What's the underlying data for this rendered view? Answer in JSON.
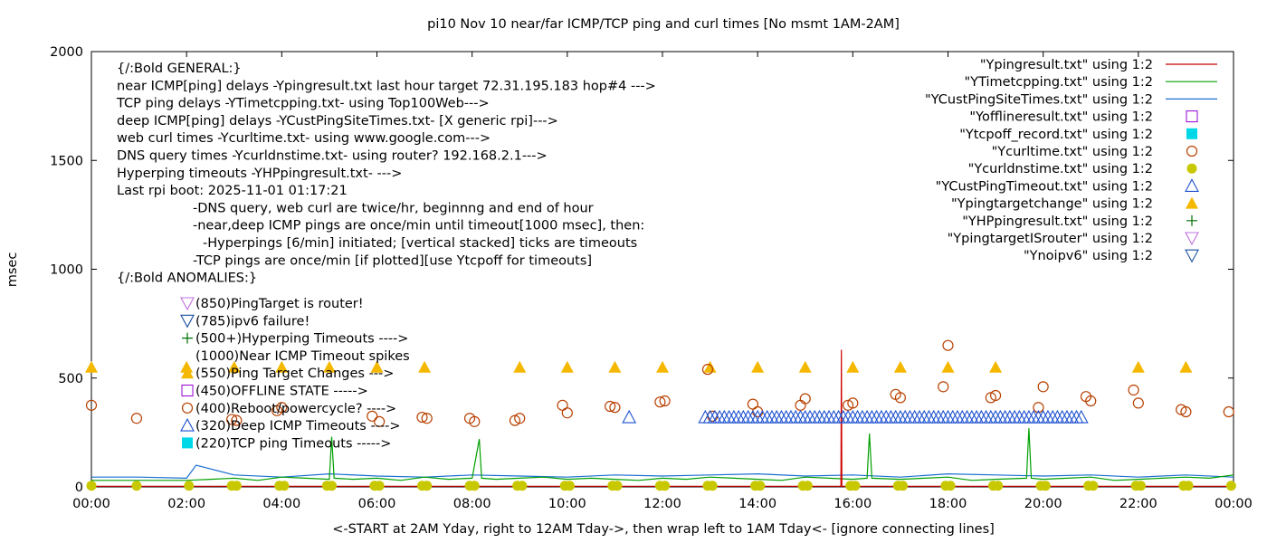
{
  "chart_data": {
    "type": "scatter",
    "title": "pi10 Nov 10  near/far ICMP/TCP ping and curl times [No msmt 1AM-2AM]",
    "xlabel": "<-START at 2AM Yday, right to 12AM Tday->, then wrap left to 1AM Tday<- [ignore connecting lines]",
    "ylabel": "msec",
    "xlim": [
      0,
      24
    ],
    "ylim": [
      0,
      2000
    ],
    "grid": false,
    "legend_position": "top-right",
    "x_tick_labels": [
      "00:00",
      "02:00",
      "04:00",
      "06:00",
      "08:00",
      "10:00",
      "12:00",
      "14:00",
      "16:00",
      "18:00",
      "20:00",
      "22:00",
      "00:00"
    ],
    "y_tick_labels": [
      "0",
      "500",
      "1000",
      "1500",
      "2000"
    ],
    "notes": [
      "{/:Bold GENERAL:}",
      "near ICMP[ping] delays -Ypingresult.txt last hour target 72.31.195.183 hop#4 --->",
      "TCP ping delays -YTimetcpping.txt- using Top100Web--->",
      "deep ICMP[ping] delays -YCustPingSiteTimes.txt- [X generic rpi]--->",
      "web curl times -Ycurltime.txt- using www.google.com--->",
      "DNS query times -Ycurldnstime.txt- using router? 192.168.2.1--->",
      "Hyperping timeouts -YHPpingresult.txt- --->",
      "Last rpi boot: 2025-11-01 01:17:21",
      "-DNS query, web curl are twice/hr, beginnng and end of hour",
      "-near,deep ICMP pings are once/min until timeout[1000 msec], then:",
      "-Hyperpings [6/min] initiated; [vertical stacked] ticks are timeouts",
      "-TCP pings are once/min [if plotted][use Ytcpoff for timeouts]",
      "{/:Bold ANOMALIES:}"
    ],
    "anomalies": [
      {
        "text": "(850)PingTarget is router!",
        "marker": "tri-down-violet"
      },
      {
        "text": "(785)ipv6 failure!",
        "marker": "tri-down-blue"
      },
      {
        "text": "(500+)Hyperping Timeouts ---->",
        "marker": "plus-green"
      },
      {
        "text": "(1000)Near ICMP Timeout spikes",
        "marker": "none"
      },
      {
        "text": "(550)Ping Target Changes --->",
        "marker": "tri-up-orange"
      },
      {
        "text": "(450)OFFLINE STATE ----->",
        "marker": "square-purple"
      },
      {
        "text": "(400)Reboot/powercycle? ---->",
        "marker": "circle-brown"
      },
      {
        "text": "(320)Deep ICMP Timeouts ---->",
        "marker": "tri-up-blue"
      },
      {
        "text": "(220)TCP ping Timeouts ----->",
        "marker": "square-cyan"
      }
    ],
    "legend": [
      {
        "name": "\"Ypingresult.txt\" using 1:2",
        "marker": "line",
        "color": "#cc0000"
      },
      {
        "name": "\"YTimetcpping.txt\" using 1:2",
        "marker": "line",
        "color": "#00a000"
      },
      {
        "name": "\"YCustPingSiteTimes.txt\" using 1:2",
        "marker": "line",
        "color": "#1a6fd0"
      },
      {
        "name": "\"Yofflineresult.txt\" using 1:2",
        "marker": "square",
        "color": "#9400d3"
      },
      {
        "name": "\"Ytcpoff_record.txt\" using 1:2",
        "marker": "fsquare",
        "color": "#00d8e8"
      },
      {
        "name": "\"Ycurltime.txt\" using 1:2",
        "marker": "circle",
        "color": "#b84000"
      },
      {
        "name": "\"Ycurldnstime.txt\" using 1:2",
        "marker": "fcircle",
        "color": "#c8c800"
      },
      {
        "name": "\"YCustPingTimeout.txt\" using 1:2",
        "marker": "triup",
        "color": "#1a4fd0"
      },
      {
        "name": "\"Ypingtargetchange\" using 1:2",
        "marker": "ftriup",
        "color": "#f5b800"
      },
      {
        "name": "\"YHPpingresult.txt\" using 1:2",
        "marker": "plus",
        "color": "#007000"
      },
      {
        "name": "\"YpingtargetISrouter\" using 1:2",
        "marker": "tridown",
        "color": "#c070e0"
      },
      {
        "name": "\"Ynoipv6\" using 1:2",
        "marker": "tridown",
        "color": "#1a4fa0"
      }
    ],
    "series": [
      {
        "name": "\"Ypingtargetchange\" using 1:2",
        "x": [
          0,
          2,
          3,
          4,
          5,
          6,
          7,
          9,
          10,
          11,
          12,
          13,
          14,
          15,
          16,
          17,
          18,
          19,
          22,
          23
        ],
        "y": [
          550,
          550,
          550,
          550,
          550,
          550,
          550,
          550,
          550,
          550,
          550,
          550,
          550,
          550,
          550,
          550,
          550,
          550,
          550,
          550
        ]
      },
      {
        "name": "\"Ycurltime.txt\" using 1:2",
        "x": [
          0,
          0.95,
          2.95,
          3.05,
          3.9,
          4,
          5.9,
          6.05,
          6.95,
          7.05,
          7.95,
          8.05,
          8.9,
          9,
          9.9,
          10,
          10.9,
          11,
          11.95,
          12.05,
          12.95,
          13.05,
          13.9,
          14,
          14.9,
          15,
          15.9,
          16,
          16.9,
          17,
          17.9,
          18,
          18.9,
          19,
          19.9,
          20,
          20.9,
          21,
          21.9,
          22,
          22.9,
          23,
          23.9
        ],
        "y": [
          375,
          315,
          310,
          305,
          350,
          365,
          325,
          300,
          320,
          315,
          315,
          300,
          305,
          315,
          375,
          340,
          370,
          365,
          390,
          395,
          540,
          325,
          380,
          345,
          375,
          405,
          375,
          385,
          425,
          410,
          460,
          650,
          410,
          420,
          365,
          460,
          415,
          395,
          445,
          385,
          355,
          345,
          345
        ]
      },
      {
        "name": "\"YCustPingTimeout.txt\" using 1:2",
        "x": [
          11.3,
          12.9,
          13,
          13.1,
          13.2,
          13.3,
          13.4,
          13.5,
          13.6,
          13.7,
          13.8,
          13.9,
          14.0,
          14.1,
          14.2,
          14.3,
          14.4,
          14.5,
          14.6,
          14.7,
          14.8,
          14.9,
          15.0,
          15.1,
          15.2,
          15.3,
          15.4,
          15.5,
          15.6,
          15.7,
          15.8,
          15.9,
          16.0,
          16.1,
          16.2,
          16.3,
          16.4,
          16.5,
          16.6,
          16.7,
          16.8,
          16.9,
          17.0,
          17.1,
          17.2,
          17.3,
          17.4,
          17.5,
          17.6,
          17.7,
          17.8,
          17.9,
          18.0,
          18.1,
          18.2,
          18.3,
          18.4,
          18.5,
          18.6,
          18.7,
          18.8,
          18.9,
          19.0,
          19.1,
          19.2,
          19.3,
          19.4,
          19.5,
          19.6,
          19.7,
          19.8,
          19.9,
          20.0,
          20.1,
          20.2,
          20.3,
          20.4,
          20.5,
          20.6,
          20.7,
          20.8
        ],
        "y": [
          320,
          320,
          320,
          320,
          320,
          320,
          320,
          320,
          320,
          320,
          320,
          320,
          320,
          320,
          320,
          320,
          320,
          320,
          320,
          320,
          320,
          320,
          320,
          320,
          320,
          320,
          320,
          320,
          320,
          320,
          320,
          320,
          320,
          320,
          320,
          320,
          320,
          320,
          320,
          320,
          320,
          320,
          320,
          320,
          320,
          320,
          320,
          320,
          320,
          320,
          320,
          320,
          320,
          320,
          320,
          320,
          320,
          320,
          320,
          320,
          320,
          320,
          320,
          320,
          320,
          320,
          320,
          320,
          320,
          320,
          320,
          320,
          320,
          320,
          320,
          320,
          320,
          320,
          320,
          320,
          320
        ]
      },
      {
        "name": "\"Ycurldnstime.txt\" using 1:2",
        "x": [
          0,
          0.95,
          2.05,
          2.95,
          3.05,
          3.95,
          4.05,
          4.95,
          5.05,
          5.95,
          6.05,
          6.95,
          7.05,
          7.95,
          8.05,
          8.95,
          9.05,
          9.95,
          10.05,
          10.95,
          11.05,
          11.95,
          12.05,
          12.95,
          13.05,
          13.95,
          14.05,
          14.95,
          15.05,
          15.95,
          16.05,
          16.95,
          17.05,
          17.95,
          18.05,
          18.95,
          19.05,
          19.95,
          20.05,
          20.95,
          21.05,
          21.95,
          22.05,
          22.95,
          23.05,
          23.95
        ],
        "y": [
          5,
          5,
          5,
          5,
          5,
          5,
          5,
          5,
          5,
          5,
          5,
          5,
          5,
          5,
          5,
          5,
          5,
          5,
          5,
          5,
          5,
          5,
          5,
          5,
          5,
          5,
          5,
          5,
          5,
          5,
          5,
          5,
          5,
          5,
          5,
          5,
          5,
          5,
          5,
          5,
          5,
          5,
          5,
          5,
          5,
          5
        ]
      },
      {
        "name": "\"Ypingresult.txt\" using 1:2",
        "x": [
          0,
          2,
          15.75,
          15.76,
          15.77,
          24
        ],
        "y": [
          3,
          3,
          3,
          630,
          3,
          3
        ]
      },
      {
        "name": "\"YTimetcpping.txt\" using 1:2",
        "x": [
          0,
          1,
          2,
          2.5,
          3,
          3.5,
          4,
          4.5,
          5,
          5.05,
          5.1,
          5.5,
          6,
          6.5,
          7,
          7.5,
          8,
          8.15,
          8.2,
          8.5,
          9,
          9.5,
          10,
          10.5,
          11,
          11.5,
          12,
          12.5,
          13,
          13.5,
          14,
          14.5,
          15,
          15.5,
          16,
          16.3,
          16.35,
          16.4,
          17,
          17.5,
          18,
          18.5,
          19,
          19.65,
          19.7,
          19.75,
          20,
          20.5,
          21,
          21.5,
          22,
          22.5,
          23,
          23.5,
          24
        ],
        "y": [
          30,
          30,
          30,
          35,
          40,
          30,
          45,
          40,
          35,
          230,
          40,
          35,
          40,
          30,
          45,
          35,
          40,
          220,
          40,
          35,
          40,
          45,
          35,
          40,
          35,
          30,
          40,
          35,
          45,
          40,
          35,
          30,
          45,
          40,
          35,
          40,
          245,
          40,
          35,
          40,
          45,
          30,
          35,
          40,
          270,
          40,
          35,
          40,
          45,
          30,
          35,
          40,
          45,
          40,
          55
        ]
      },
      {
        "name": "\"YCustPingSiteTimes.txt\" using 1:2",
        "x": [
          0,
          1,
          2,
          2.2,
          3,
          4,
          5,
          6,
          7,
          8,
          9,
          10,
          11,
          12,
          13,
          14,
          15,
          16,
          17,
          18,
          19,
          20,
          21,
          22,
          23,
          24
        ],
        "y": [
          45,
          45,
          40,
          100,
          55,
          45,
          60,
          50,
          45,
          55,
          50,
          45,
          55,
          50,
          55,
          60,
          50,
          55,
          45,
          60,
          55,
          50,
          55,
          45,
          55,
          45
        ]
      }
    ]
  }
}
